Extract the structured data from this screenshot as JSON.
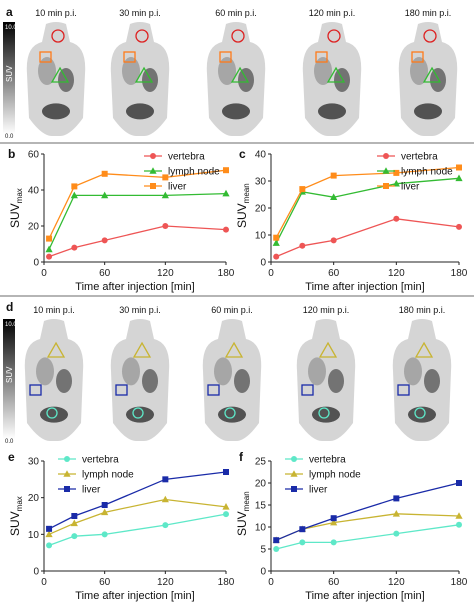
{
  "figure": {
    "pet_row_top": {
      "panel_letter": "a",
      "scalebar": {
        "max": "10.0",
        "min": "0.0",
        "label": "SUV"
      },
      "timepoints": [
        "10 min p.i.",
        "30 min p.i.",
        "60 min p.i.",
        "120 min p.i.",
        "180 min p.i."
      ]
    },
    "pet_row_bottom": {
      "panel_letter": "d",
      "scalebar": {
        "max": "10.0",
        "min": "0.0",
        "label": "SUV"
      },
      "timepoints": [
        "10 min p.i.",
        "30 min p.i.",
        "60 min p.i.",
        "120 min p.i.",
        "180 min p.i."
      ]
    }
  },
  "chart_data": [
    {
      "panel": "b",
      "type": "line",
      "ylabel_main": "SUV",
      "ylabel_sub": "max",
      "xlabel": "Time after injection [min]",
      "xlim": [
        0,
        180
      ],
      "ylim": [
        0,
        60
      ],
      "xticks": [
        0,
        60,
        120,
        180
      ],
      "yticks": [
        0,
        20,
        40,
        60
      ],
      "x": [
        5,
        30,
        60,
        120,
        180
      ],
      "legend": "top-right",
      "series": [
        {
          "name": "vertebra",
          "color": "#ee5555",
          "marker": "circle",
          "values": [
            3,
            8,
            12,
            20,
            18
          ]
        },
        {
          "name": "lymph node",
          "color": "#33bb33",
          "marker": "triangle",
          "values": [
            7,
            37,
            37,
            37,
            38
          ]
        },
        {
          "name": "liver",
          "color": "#ff8c1a",
          "marker": "square",
          "values": [
            13,
            42,
            49,
            47,
            51
          ]
        }
      ]
    },
    {
      "panel": "c",
      "type": "line",
      "ylabel_main": "SUV",
      "ylabel_sub": "mean",
      "xlabel": "Time after injection [min]",
      "xlim": [
        0,
        180
      ],
      "ylim": [
        0,
        40
      ],
      "xticks": [
        0,
        60,
        120,
        180
      ],
      "yticks": [
        0,
        10,
        20,
        30,
        40
      ],
      "x": [
        5,
        30,
        60,
        120,
        180
      ],
      "legend": "top-right",
      "series": [
        {
          "name": "vertebra",
          "color": "#ee5555",
          "marker": "circle",
          "values": [
            2,
            6,
            8,
            16,
            13
          ]
        },
        {
          "name": "lymph node",
          "color": "#33bb33",
          "marker": "triangle",
          "values": [
            7,
            26,
            24,
            29,
            31
          ]
        },
        {
          "name": "liver",
          "color": "#ff8c1a",
          "marker": "square",
          "values": [
            9,
            27,
            32,
            33,
            35
          ]
        }
      ]
    },
    {
      "panel": "e",
      "type": "line",
      "ylabel_main": "SUV",
      "ylabel_sub": "max",
      "xlabel": "Time after injection [min]",
      "xlim": [
        0,
        180
      ],
      "ylim": [
        0,
        30
      ],
      "xticks": [
        0,
        60,
        120,
        180
      ],
      "yticks": [
        0,
        10,
        20,
        30
      ],
      "x": [
        5,
        30,
        60,
        120,
        180
      ],
      "legend": "top-left",
      "series": [
        {
          "name": "vertebra",
          "color": "#5ee8c8",
          "marker": "circle",
          "values": [
            7,
            9.5,
            10,
            12.5,
            15.5
          ]
        },
        {
          "name": "lymph node",
          "color": "#c8b432",
          "marker": "triangle",
          "values": [
            10,
            13,
            16,
            19.5,
            17.5
          ]
        },
        {
          "name": "liver",
          "color": "#1a2ba8",
          "marker": "square",
          "values": [
            11.5,
            15,
            18,
            25,
            27
          ]
        }
      ]
    },
    {
      "panel": "f",
      "type": "line",
      "ylabel_main": "SUV",
      "ylabel_sub": "mean",
      "xlabel": "Time after injection [min]",
      "xlim": [
        0,
        180
      ],
      "ylim": [
        0,
        25
      ],
      "xticks": [
        0,
        60,
        120,
        180
      ],
      "yticks": [
        0,
        5,
        10,
        15,
        20,
        25
      ],
      "x": [
        5,
        30,
        60,
        120,
        180
      ],
      "legend": "top-left",
      "series": [
        {
          "name": "vertebra",
          "color": "#5ee8c8",
          "marker": "circle",
          "values": [
            5,
            6.5,
            6.5,
            8.5,
            10.5
          ]
        },
        {
          "name": "lymph node",
          "color": "#c8b432",
          "marker": "triangle",
          "values": [
            7,
            9.5,
            11,
            13,
            12.5
          ]
        },
        {
          "name": "liver",
          "color": "#1a2ba8",
          "marker": "square",
          "values": [
            7,
            9.5,
            12,
            16.5,
            20
          ]
        }
      ]
    }
  ]
}
